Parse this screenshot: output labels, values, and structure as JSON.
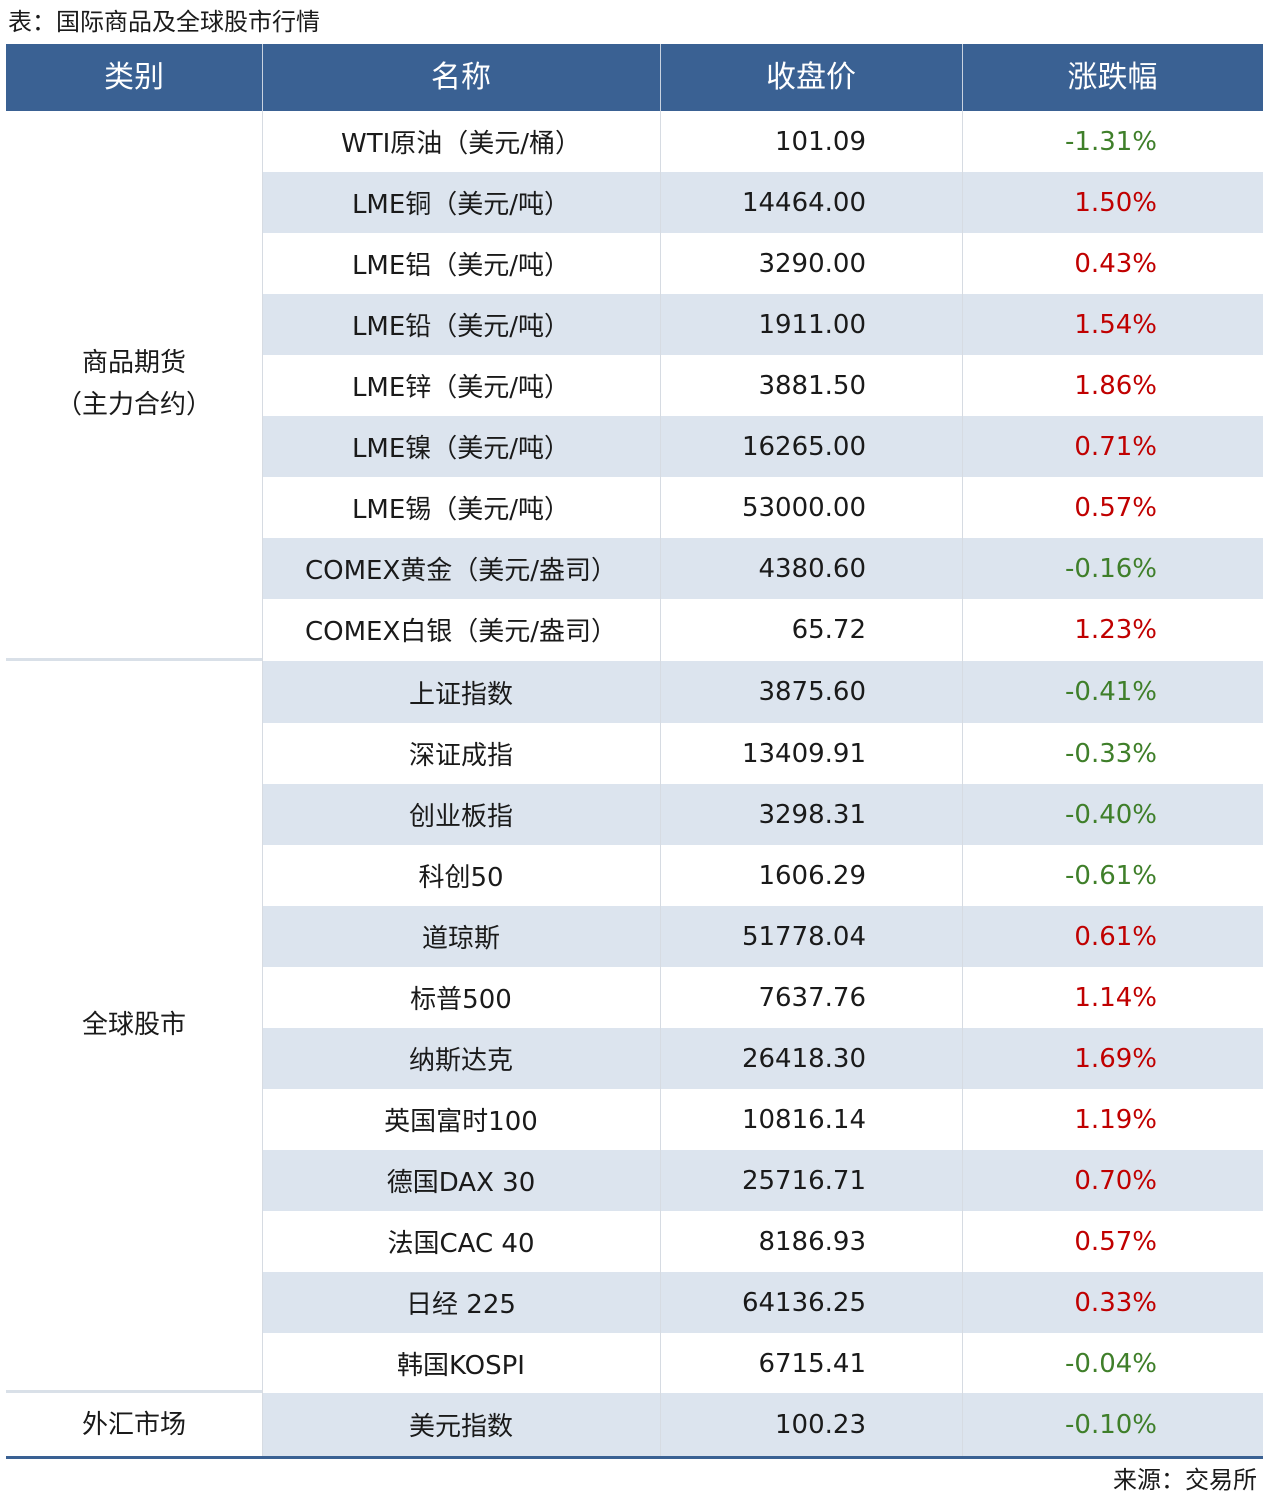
{
  "caption": "表：国际商品及全球股市行情",
  "source": "来源：交易所",
  "header": [
    "类别",
    "名称",
    "收盘价",
    "涨跌幅"
  ],
  "categories": [
    {
      "line1": "商品期货",
      "line2": "（主力合约）"
    },
    {
      "line1": "全球股市",
      "line2": ""
    },
    {
      "line1": "外汇市场",
      "line2": ""
    }
  ],
  "rows": [
    {
      "name": "WTI原油（美元/桶）",
      "price": "101.09",
      "change": "-1.31%",
      "dir": "down"
    },
    {
      "name": "LME铜（美元/吨）",
      "price": "14464.00",
      "change": "1.50%",
      "dir": "up"
    },
    {
      "name": "LME铝（美元/吨）",
      "price": "3290.00",
      "change": "0.43%",
      "dir": "up"
    },
    {
      "name": "LME铅（美元/吨）",
      "price": "1911.00",
      "change": "1.54%",
      "dir": "up"
    },
    {
      "name": "LME锌（美元/吨）",
      "price": "3881.50",
      "change": "1.86%",
      "dir": "up"
    },
    {
      "name": "LME镍（美元/吨）",
      "price": "16265.00",
      "change": "0.71%",
      "dir": "up"
    },
    {
      "name": "LME锡（美元/吨）",
      "price": "53000.00",
      "change": "0.57%",
      "dir": "up"
    },
    {
      "name": "COMEX黄金（美元/盎司）",
      "price": "4380.60",
      "change": "-0.16%",
      "dir": "down"
    },
    {
      "name": "COMEX白银（美元/盎司）",
      "price": "65.72",
      "change": "1.23%",
      "dir": "up"
    },
    {
      "name": "上证指数",
      "price": "3875.60",
      "change": "-0.41%",
      "dir": "down"
    },
    {
      "name": "深证成指",
      "price": "13409.91",
      "change": "-0.33%",
      "dir": "down"
    },
    {
      "name": "创业板指",
      "price": "3298.31",
      "change": "-0.40%",
      "dir": "down"
    },
    {
      "name": "科创50",
      "price": "1606.29",
      "change": "-0.61%",
      "dir": "down"
    },
    {
      "name": "道琼斯",
      "price": "51778.04",
      "change": "0.61%",
      "dir": "up"
    },
    {
      "name": "标普500",
      "price": "7637.76",
      "change": "1.14%",
      "dir": "up"
    },
    {
      "name": "纳斯达克",
      "price": "26418.30",
      "change": "1.69%",
      "dir": "up"
    },
    {
      "name": "英国富时100",
      "price": "10816.14",
      "change": "1.19%",
      "dir": "up"
    },
    {
      "name": "德国DAX 30",
      "price": "25716.71",
      "change": "0.70%",
      "dir": "up"
    },
    {
      "name": "法国CAC 40",
      "price": "8186.93",
      "change": "0.57%",
      "dir": "up"
    },
    {
      "name": "日经 225",
      "price": "64136.25",
      "change": "0.33%",
      "dir": "up"
    },
    {
      "name": "韩国KOSPI",
      "price": "6715.41",
      "change": "-0.04%",
      "dir": "down"
    },
    {
      "name": "美元指数",
      "price": "100.23",
      "change": "-0.10%",
      "dir": "down"
    }
  ],
  "colors": {
    "header_bg": "#3a6193",
    "row_shade": "#dce4ee",
    "up": "#c00000",
    "down": "#3f7f2a"
  }
}
